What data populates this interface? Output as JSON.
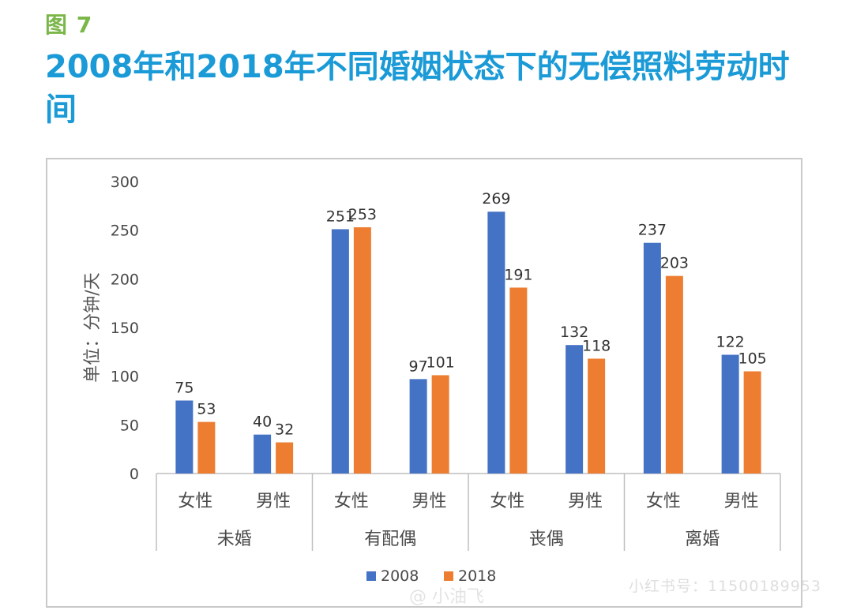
{
  "header": {
    "figure_label": "图 7",
    "title": "2008年和2018年不同婚姻状态下的无偿照料劳动时间"
  },
  "watermarks": {
    "id_text": "小红书号：1150018​9953",
    "user_text": "@ 小油飞"
  },
  "colors": {
    "series_2008": "#4472c4",
    "series_2018": "#ed7d31",
    "title": "#1a9ad6",
    "figure_label": "#7ab648"
  },
  "chart_data": {
    "type": "bar",
    "ylabel": "单位：分钟/天",
    "ylim": [
      0,
      300
    ],
    "yticks": [
      0,
      50,
      100,
      150,
      200,
      250,
      300
    ],
    "grid": false,
    "legend_position": "bottom",
    "groups": [
      {
        "name": "未婚",
        "categories": [
          "女性",
          "男性"
        ]
      },
      {
        "name": "有配偶",
        "categories": [
          "女性",
          "男性"
        ]
      },
      {
        "name": "丧偶",
        "categories": [
          "女性",
          "男性"
        ]
      },
      {
        "name": "离婚",
        "categories": [
          "女性",
          "男性"
        ]
      }
    ],
    "series": [
      {
        "name": "2008",
        "values": [
          75,
          40,
          251,
          97,
          269,
          132,
          237,
          122
        ]
      },
      {
        "name": "2018",
        "values": [
          53,
          32,
          253,
          101,
          191,
          118,
          203,
          105
        ]
      }
    ]
  }
}
